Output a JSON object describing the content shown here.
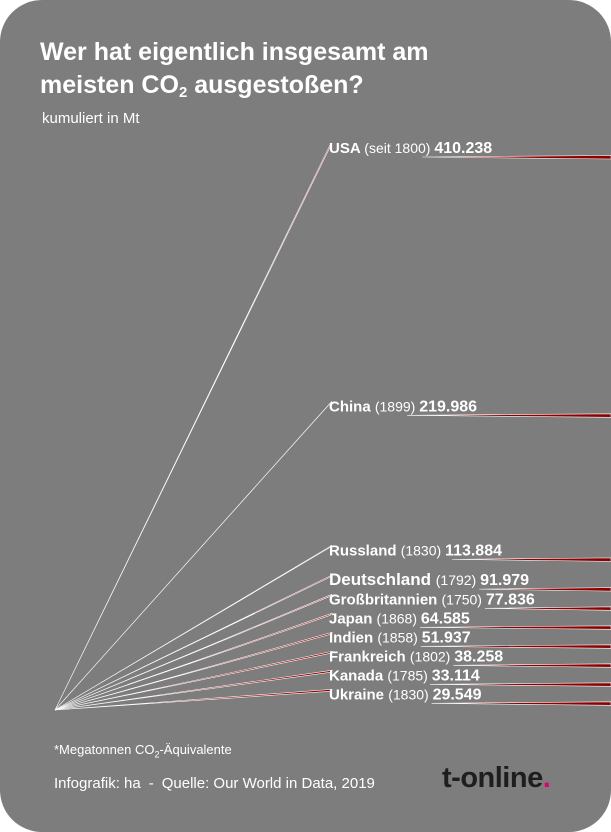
{
  "header": {
    "title_line1": "Wer hat eigentlich insgesamt am",
    "title_line2_pre": "meisten CO",
    "title_line2_sub": "2",
    "title_line2_post": " ausgestoßen?",
    "subtitle": "kumuliert in Mt"
  },
  "footer": {
    "footnote_pre": "*Megatonnen CO",
    "footnote_sub": "2",
    "footnote_post": "-Äquivalente",
    "credit": "Infografik: ha",
    "separator": "-",
    "source": "Quelle: Our World in Data, 2019",
    "logo_text": "t-online",
    "logo_dot": "."
  },
  "colors": {
    "background": "#7d7d7d",
    "line": "#8b0000",
    "line_highlight": "#ffffff",
    "logo_accent": "#e20074"
  },
  "chart_data": {
    "type": "bar",
    "title": "Wer hat eigentlich insgesamt am meisten CO2 ausgestoßen?",
    "subtitle": "kumuliert in Mt",
    "categories": [
      "USA",
      "China",
      "Russland",
      "Deutschland",
      "Großbritannien",
      "Japan",
      "Indien",
      "Frankreich",
      "Kanada",
      "Ukraine"
    ],
    "years": [
      "(seit 1800)",
      "(1899)",
      "(1830)",
      "(1792)",
      "(1750)",
      "(1868)",
      "(1858)",
      "(1802)",
      "(1785)",
      "(1830)"
    ],
    "values": [
      410238,
      219986,
      113884,
      91979,
      77836,
      64585,
      51937,
      38258,
      33114,
      29549
    ],
    "value_labels": [
      "410.238",
      "219.986",
      "113.884",
      "91.979",
      "77.836",
      "64.585",
      "51.937",
      "38.258",
      "33.114",
      "29.549"
    ],
    "unit": "Mt"
  }
}
